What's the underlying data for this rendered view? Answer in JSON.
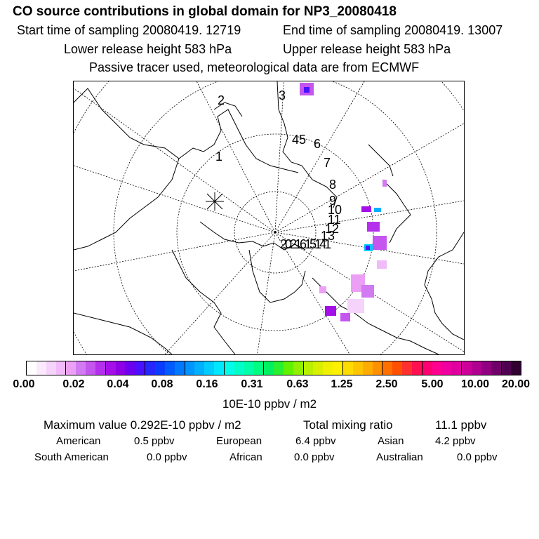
{
  "header": {
    "title": "CO  source contributions in global domain for NP3_20080418",
    "start_time": "Start time of sampling 20080419. 12719",
    "end_time": "End time of sampling 20080419. 13007",
    "lower_height": "Lower release height  583 hPa",
    "upper_height": "Upper release height  583 hPa",
    "note": "Passive tracer used, meteorological data are from ECMWF"
  },
  "map": {
    "labels": [
      "2",
      "3",
      "45",
      "6",
      "7",
      "8",
      "9",
      "10",
      "11",
      "12",
      "13",
      "1",
      "2021615141"
    ]
  },
  "colorbar": {
    "colors": [
      "#ffffff",
      "#fbeafd",
      "#f6d3fb",
      "#f1baf8",
      "#eba0f5",
      "#d27af2",
      "#c456ef",
      "#b530ec",
      "#a40ee7",
      "#8e00e6",
      "#6c00f0",
      "#4a10ff",
      "#2626ff",
      "#0a3cff",
      "#005cff",
      "#0078ff",
      "#0094ff",
      "#00b0ff",
      "#00ccff",
      "#00e8ff",
      "#00ffe8",
      "#00ffc8",
      "#00ffa8",
      "#00ff80",
      "#00f060",
      "#28f030",
      "#60f000",
      "#90f000",
      "#b8f000",
      "#d8f000",
      "#f0f000",
      "#fff000",
      "#ffdc00",
      "#ffc400",
      "#ffac00",
      "#ff9000",
      "#ff7000",
      "#ff5000",
      "#ff3030",
      "#ff1050",
      "#ff0070",
      "#ff0090",
      "#f000a0",
      "#e000a0",
      "#cc0098",
      "#b00090",
      "#900080",
      "#700068",
      "#500050",
      "#300030"
    ],
    "ticks": [
      "0.00",
      "0.02",
      "0.04",
      "0.08",
      "0.16",
      "0.31",
      "0.63",
      "1.25",
      "2.50",
      "5.00",
      "10.00",
      "20.00"
    ],
    "unit": "10E-10 ppbv / m2"
  },
  "stats": {
    "max_value": "Maximum value  0.292E-10 ppbv / m2",
    "total_label": "Total mixing ratio",
    "total_value": "11.1 ppbv",
    "regions": [
      {
        "label": "American",
        "value": "0.5 ppbv"
      },
      {
        "label": "European",
        "value": "6.4 ppbv"
      },
      {
        "label": "Asian",
        "value": "4.2 ppbv"
      },
      {
        "label": "South American",
        "value": "0.0 ppbv"
      },
      {
        "label": "African",
        "value": "0.0 ppbv"
      },
      {
        "label": "Australian",
        "value": "0.0 ppbv"
      }
    ]
  }
}
